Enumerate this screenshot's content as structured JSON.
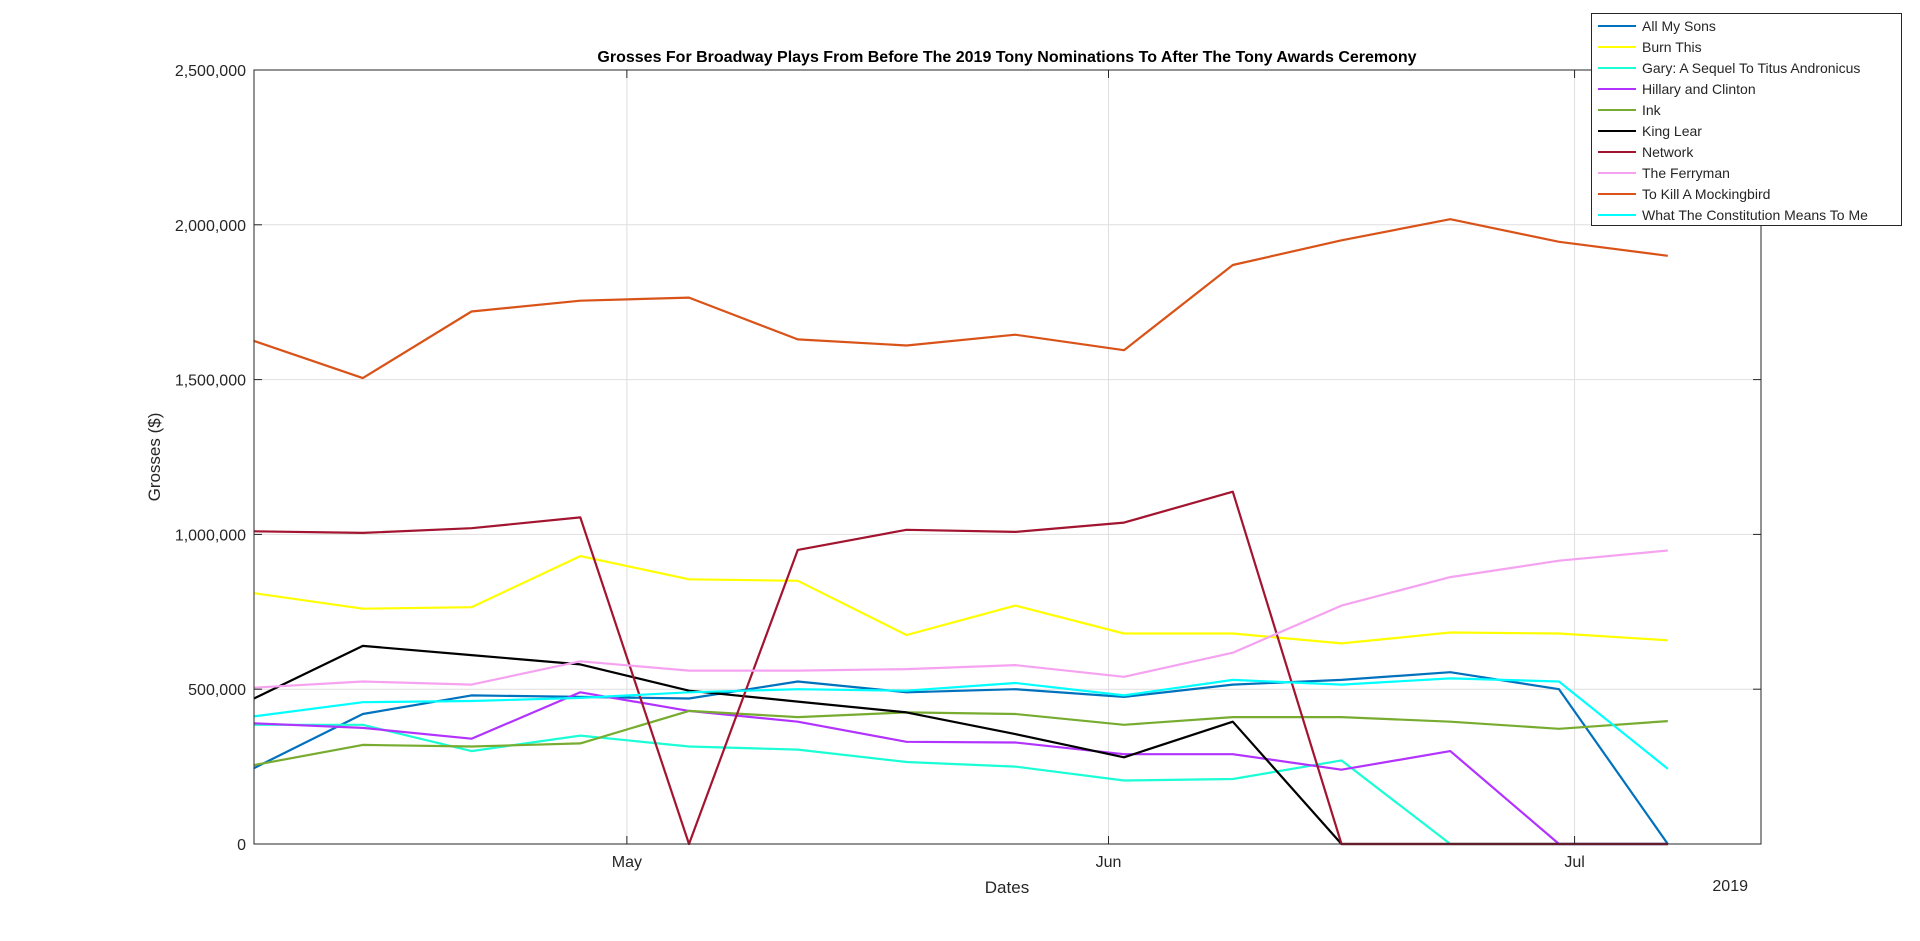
{
  "chart_data": {
    "type": "line",
    "title": "Grosses For Broadway Plays From Before The 2019 Tony Nominations To After The Tony Awards Ceremony",
    "xlabel": "Dates",
    "ylabel": "Grosses ($)",
    "x_year_label": "2019",
    "x": [
      "2019-04-07",
      "2019-04-14",
      "2019-04-21",
      "2019-04-28",
      "2019-05-05",
      "2019-05-12",
      "2019-05-19",
      "2019-05-26",
      "2019-06-02",
      "2019-06-09",
      "2019-06-16",
      "2019-06-23",
      "2019-06-30",
      "2019-07-07"
    ],
    "xlim": [
      "2019-04-07",
      "2019-07-13"
    ],
    "xticks": [
      {
        "date": "2019-05-01",
        "label": "May"
      },
      {
        "date": "2019-06-01",
        "label": "Jun"
      },
      {
        "date": "2019-07-01",
        "label": "Jul"
      }
    ],
    "ylim": [
      0,
      2500000
    ],
    "yticks": [
      {
        "value": 0,
        "label": "0"
      },
      {
        "value": 500000,
        "label": "500,000"
      },
      {
        "value": 1000000,
        "label": "1,000,000"
      },
      {
        "value": 1500000,
        "label": "1,500,000"
      },
      {
        "value": 2000000,
        "label": "2,000,000"
      },
      {
        "value": 2500000,
        "label": "2,500,000"
      }
    ],
    "grid": true,
    "legend_position": "top-right",
    "series": [
      {
        "name": "All My Sons",
        "color": "#0072bd",
        "values": [
          245000,
          420000,
          480000,
          475000,
          470000,
          525000,
          490000,
          500000,
          475000,
          515000,
          530000,
          555000,
          500000,
          0
        ]
      },
      {
        "name": "Burn This",
        "color": "#ffff00",
        "values": [
          810000,
          760000,
          765000,
          930000,
          855000,
          850000,
          675000,
          770000,
          680000,
          680000,
          648000,
          683000,
          680000,
          658000
        ]
      },
      {
        "name": "Gary: A Sequel To Titus Andronicus",
        "color": "#1affd5",
        "values": [
          385000,
          385000,
          300000,
          350000,
          315000,
          305000,
          265000,
          250000,
          205000,
          210000,
          270000,
          0,
          0,
          0
        ]
      },
      {
        "name": "Hillary and Clinton",
        "color": "#b233ff",
        "values": [
          390000,
          375000,
          340000,
          490000,
          430000,
          395000,
          330000,
          328000,
          290000,
          290000,
          240000,
          300000,
          0,
          0
        ]
      },
      {
        "name": "Ink",
        "color": "#77ac30",
        "values": [
          255000,
          320000,
          315000,
          325000,
          430000,
          410000,
          425000,
          420000,
          385000,
          410000,
          410000,
          395000,
          372000,
          397000
        ]
      },
      {
        "name": "King Lear",
        "color": "#000000",
        "values": [
          470000,
          640000,
          610000,
          580000,
          495000,
          460000,
          425000,
          355000,
          280000,
          395000,
          0,
          0,
          0,
          0
        ]
      },
      {
        "name": "Network",
        "color": "#a2142f",
        "values": [
          1010000,
          1005000,
          1020000,
          1055000,
          0,
          950000,
          1015000,
          1008000,
          1038000,
          1138000,
          0,
          0,
          0,
          0
        ]
      },
      {
        "name": "The Ferryman",
        "color": "#f5a3f0",
        "values": [
          505000,
          525000,
          515000,
          590000,
          560000,
          560000,
          565000,
          578000,
          540000,
          618000,
          770000,
          862000,
          915000,
          948000
        ]
      },
      {
        "name": "To Kill A Mockingbird",
        "color": "#d95319",
        "values": [
          1625000,
          1505000,
          1720000,
          1755000,
          1765000,
          1630000,
          1610000,
          1645000,
          1595000,
          1870000,
          1950000,
          2018000,
          1945000,
          1900000
        ]
      },
      {
        "name": "What The Constitution Means To Me",
        "color": "#00ffff",
        "values": [
          412000,
          458000,
          462000,
          472000,
          490000,
          500000,
          495000,
          520000,
          480000,
          530000,
          515000,
          535000,
          525000,
          243000
        ]
      }
    ]
  }
}
